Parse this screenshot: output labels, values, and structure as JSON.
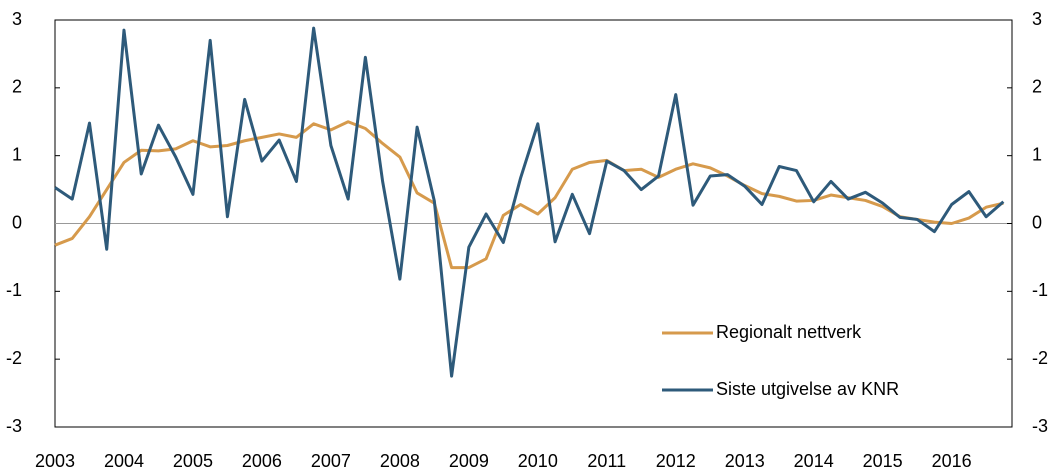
{
  "chart_data": {
    "type": "line",
    "categories": [
      "2003",
      null,
      null,
      null,
      "2004",
      null,
      null,
      null,
      "2005",
      null,
      null,
      null,
      "2006",
      null,
      null,
      null,
      "2007",
      null,
      null,
      null,
      "2008",
      null,
      null,
      null,
      "2009",
      null,
      null,
      null,
      "2010",
      null,
      null,
      null,
      "2011",
      null,
      null,
      null,
      "2012",
      null,
      null,
      null,
      "2013",
      null,
      null,
      null,
      "2014",
      null,
      null,
      null,
      "2015",
      null,
      null,
      null,
      "2016",
      null,
      null,
      null
    ],
    "series": [
      {
        "name": "Regionalt nettverk",
        "color": "#d69a4c",
        "values": [
          -0.32,
          -0.22,
          0.1,
          0.5,
          0.9,
          1.08,
          1.07,
          1.1,
          1.22,
          1.13,
          1.15,
          1.22,
          1.27,
          1.32,
          1.27,
          1.47,
          1.38,
          1.5,
          1.4,
          1.18,
          0.98,
          0.45,
          0.3,
          -0.65,
          -0.65,
          -0.52,
          0.12,
          0.28,
          0.14,
          0.38,
          0.8,
          0.9,
          0.93,
          0.78,
          0.8,
          0.68,
          0.8,
          0.88,
          0.82,
          0.7,
          0.56,
          0.44,
          0.4,
          0.33,
          0.34,
          0.42,
          0.38,
          0.34,
          0.25,
          0.1,
          0.06,
          0.02,
          0.0,
          0.08,
          0.24,
          0.3
        ]
      },
      {
        "name": "Siste utgivelse av KNR",
        "color": "#2e5a7a",
        "values": [
          0.53,
          0.36,
          1.48,
          -0.38,
          2.85,
          0.73,
          1.45,
          0.98,
          0.43,
          2.7,
          0.1,
          1.83,
          0.92,
          1.23,
          0.62,
          2.88,
          1.15,
          0.36,
          2.45,
          0.62,
          -0.82,
          1.42,
          0.33,
          -2.25,
          -0.35,
          0.14,
          -0.28,
          0.67,
          1.47,
          -0.27,
          0.43,
          -0.15,
          0.92,
          0.78,
          0.5,
          0.7,
          1.9,
          0.27,
          0.7,
          0.72,
          0.55,
          0.28,
          0.84,
          0.78,
          0.32,
          0.62,
          0.36,
          0.46,
          0.3,
          0.09,
          0.06,
          -0.12,
          0.28,
          0.47,
          0.1,
          0.32
        ]
      }
    ],
    "ylim": [
      -3,
      3
    ],
    "yticks": [
      -3,
      -2,
      -1,
      0,
      1,
      2,
      3
    ],
    "y2lim": [
      -3,
      3
    ],
    "y2ticks": [
      -3,
      -2,
      -1,
      0,
      1,
      2,
      3
    ],
    "grid": false,
    "legend": "lower right"
  }
}
